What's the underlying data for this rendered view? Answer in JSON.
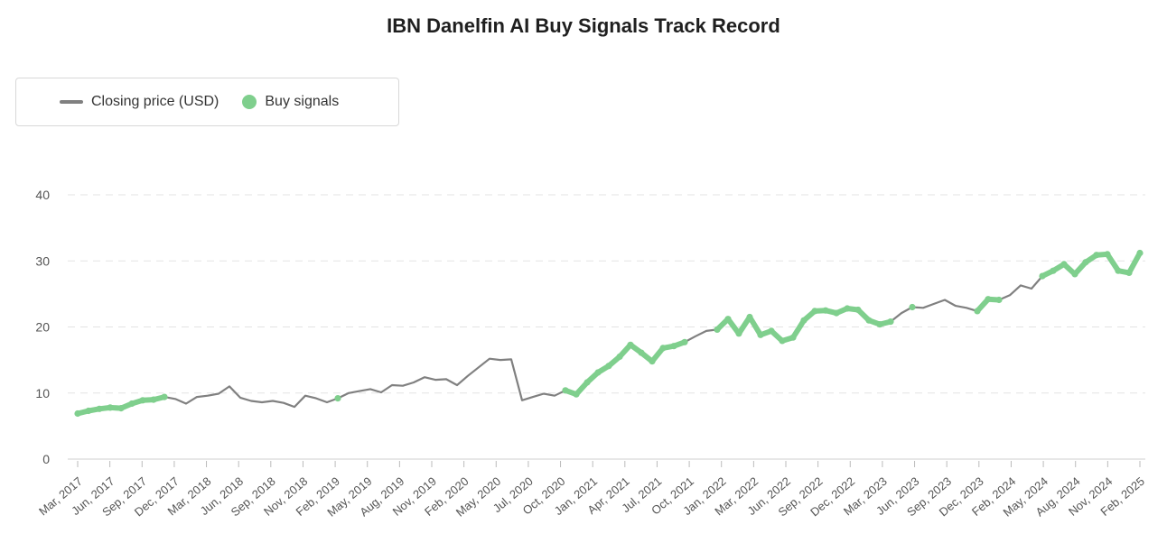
{
  "chart_data": {
    "type": "line",
    "title": "IBN Danelfin AI Buy Signals Track Record",
    "xlabel": "",
    "ylabel": "",
    "ylim": [
      0,
      40
    ],
    "yticks": [
      0,
      10,
      20,
      30,
      40
    ],
    "grid": true,
    "legend_position": "top-left",
    "legend": [
      {
        "label": "Closing price (USD)",
        "color": "#808080",
        "marker": "line"
      },
      {
        "label": "Buy signals",
        "color": "#7fcf8d",
        "marker": "dot"
      }
    ],
    "xtick_labels": [
      "Mar, 2017",
      "Jun, 2017",
      "Sep, 2017",
      "Dec, 2017",
      "Mar, 2018",
      "Jun, 2018",
      "Sep, 2018",
      "Nov, 2018",
      "Feb, 2019",
      "May, 2019",
      "Aug, 2019",
      "Nov, 2019",
      "Feb, 2020",
      "May, 2020",
      "Jul, 2020",
      "Oct, 2020",
      "Jan, 2021",
      "Apr, 2021",
      "Jul, 2021",
      "Oct, 2021",
      "Jan, 2022",
      "Mar, 2022",
      "Jun, 2022",
      "Sep, 2022",
      "Dec, 2022",
      "Mar, 2023",
      "Jun, 2023",
      "Sep, 2023",
      "Dec, 2023",
      "Feb, 2024",
      "May, 2024",
      "Aug, 2024",
      "Nov, 2024",
      "Feb, 2025"
    ],
    "series": [
      {
        "name": "Closing price (USD)",
        "color": "#808080",
        "x": [
          "2017-01",
          "2017-02",
          "2017-03",
          "2017-04",
          "2017-05",
          "2017-06",
          "2017-07",
          "2017-08",
          "2017-09",
          "2017-10",
          "2017-11",
          "2017-12",
          "2018-01",
          "2018-02",
          "2018-03",
          "2018-04",
          "2018-05",
          "2018-06",
          "2018-07",
          "2018-08",
          "2018-09",
          "2018-10",
          "2018-11",
          "2018-12",
          "2019-01",
          "2019-02",
          "2019-03",
          "2019-04",
          "2019-05",
          "2019-06",
          "2019-07",
          "2019-08",
          "2019-09",
          "2019-10",
          "2019-11",
          "2019-12",
          "2020-01",
          "2020-02",
          "2020-03",
          "2020-04",
          "2020-05",
          "2020-06",
          "2020-07",
          "2020-08",
          "2020-09",
          "2020-10",
          "2020-11",
          "2020-12",
          "2021-01",
          "2021-02",
          "2021-03",
          "2021-04",
          "2021-05",
          "2021-06",
          "2021-07",
          "2021-08",
          "2021-09",
          "2021-10",
          "2021-11",
          "2021-12",
          "2022-01",
          "2022-02",
          "2022-03",
          "2022-04",
          "2022-05",
          "2022-06",
          "2022-07",
          "2022-08",
          "2022-09",
          "2022-10",
          "2022-11",
          "2022-12",
          "2023-01",
          "2023-02",
          "2023-03",
          "2023-04",
          "2023-05",
          "2023-06",
          "2023-07",
          "2023-08",
          "2023-09",
          "2023-10",
          "2023-11",
          "2023-12",
          "2024-01",
          "2024-02",
          "2024-03",
          "2024-04",
          "2024-05",
          "2024-06",
          "2024-07",
          "2024-08",
          "2024-09",
          "2024-10",
          "2024-11",
          "2024-12",
          "2025-01",
          "2025-02",
          "2025-03"
        ],
        "values": [
          6.9,
          7.3,
          7.6,
          7.8,
          7.7,
          8.4,
          8.9,
          9.0,
          9.4,
          9.1,
          8.4,
          9.4,
          9.6,
          9.9,
          11.0,
          9.3,
          8.8,
          8.6,
          8.8,
          8.5,
          7.9,
          9.6,
          9.2,
          8.6,
          9.2,
          10.0,
          10.3,
          10.6,
          10.1,
          11.2,
          11.1,
          11.6,
          12.4,
          12.0,
          12.1,
          11.2,
          12.6,
          13.9,
          15.2,
          15.0,
          15.1,
          8.9,
          9.4,
          9.9,
          9.6,
          10.4,
          9.8,
          11.6,
          13.1,
          14.1,
          15.5,
          17.3,
          16.1,
          14.8,
          16.8,
          17.1,
          17.7,
          18.6,
          19.4,
          19.6,
          21.2,
          19.0,
          21.5,
          18.8,
          19.4,
          17.9,
          18.4,
          21.0,
          22.4,
          22.5,
          22.1,
          22.8,
          22.6,
          21.0,
          20.4,
          20.8,
          22.1,
          23.0,
          22.9,
          23.5,
          24.1,
          23.2,
          22.9,
          22.4,
          24.2,
          24.1,
          24.8,
          26.3,
          25.8,
          27.7,
          28.5,
          29.5,
          28.0,
          29.8,
          30.9,
          31.0,
          28.5,
          28.2,
          31.2
        ]
      },
      {
        "name": "Buy signals",
        "color": "#7fcf8d",
        "ranges": [
          [
            "2017-01",
            "2017-09"
          ],
          [
            "2019-01",
            "2019-01"
          ],
          [
            "2020-10",
            "2021-09"
          ],
          [
            "2021-12",
            "2023-04"
          ],
          [
            "2023-06",
            "2023-06"
          ],
          [
            "2023-12",
            "2024-02"
          ],
          [
            "2024-06",
            "2025-03"
          ]
        ]
      }
    ]
  }
}
